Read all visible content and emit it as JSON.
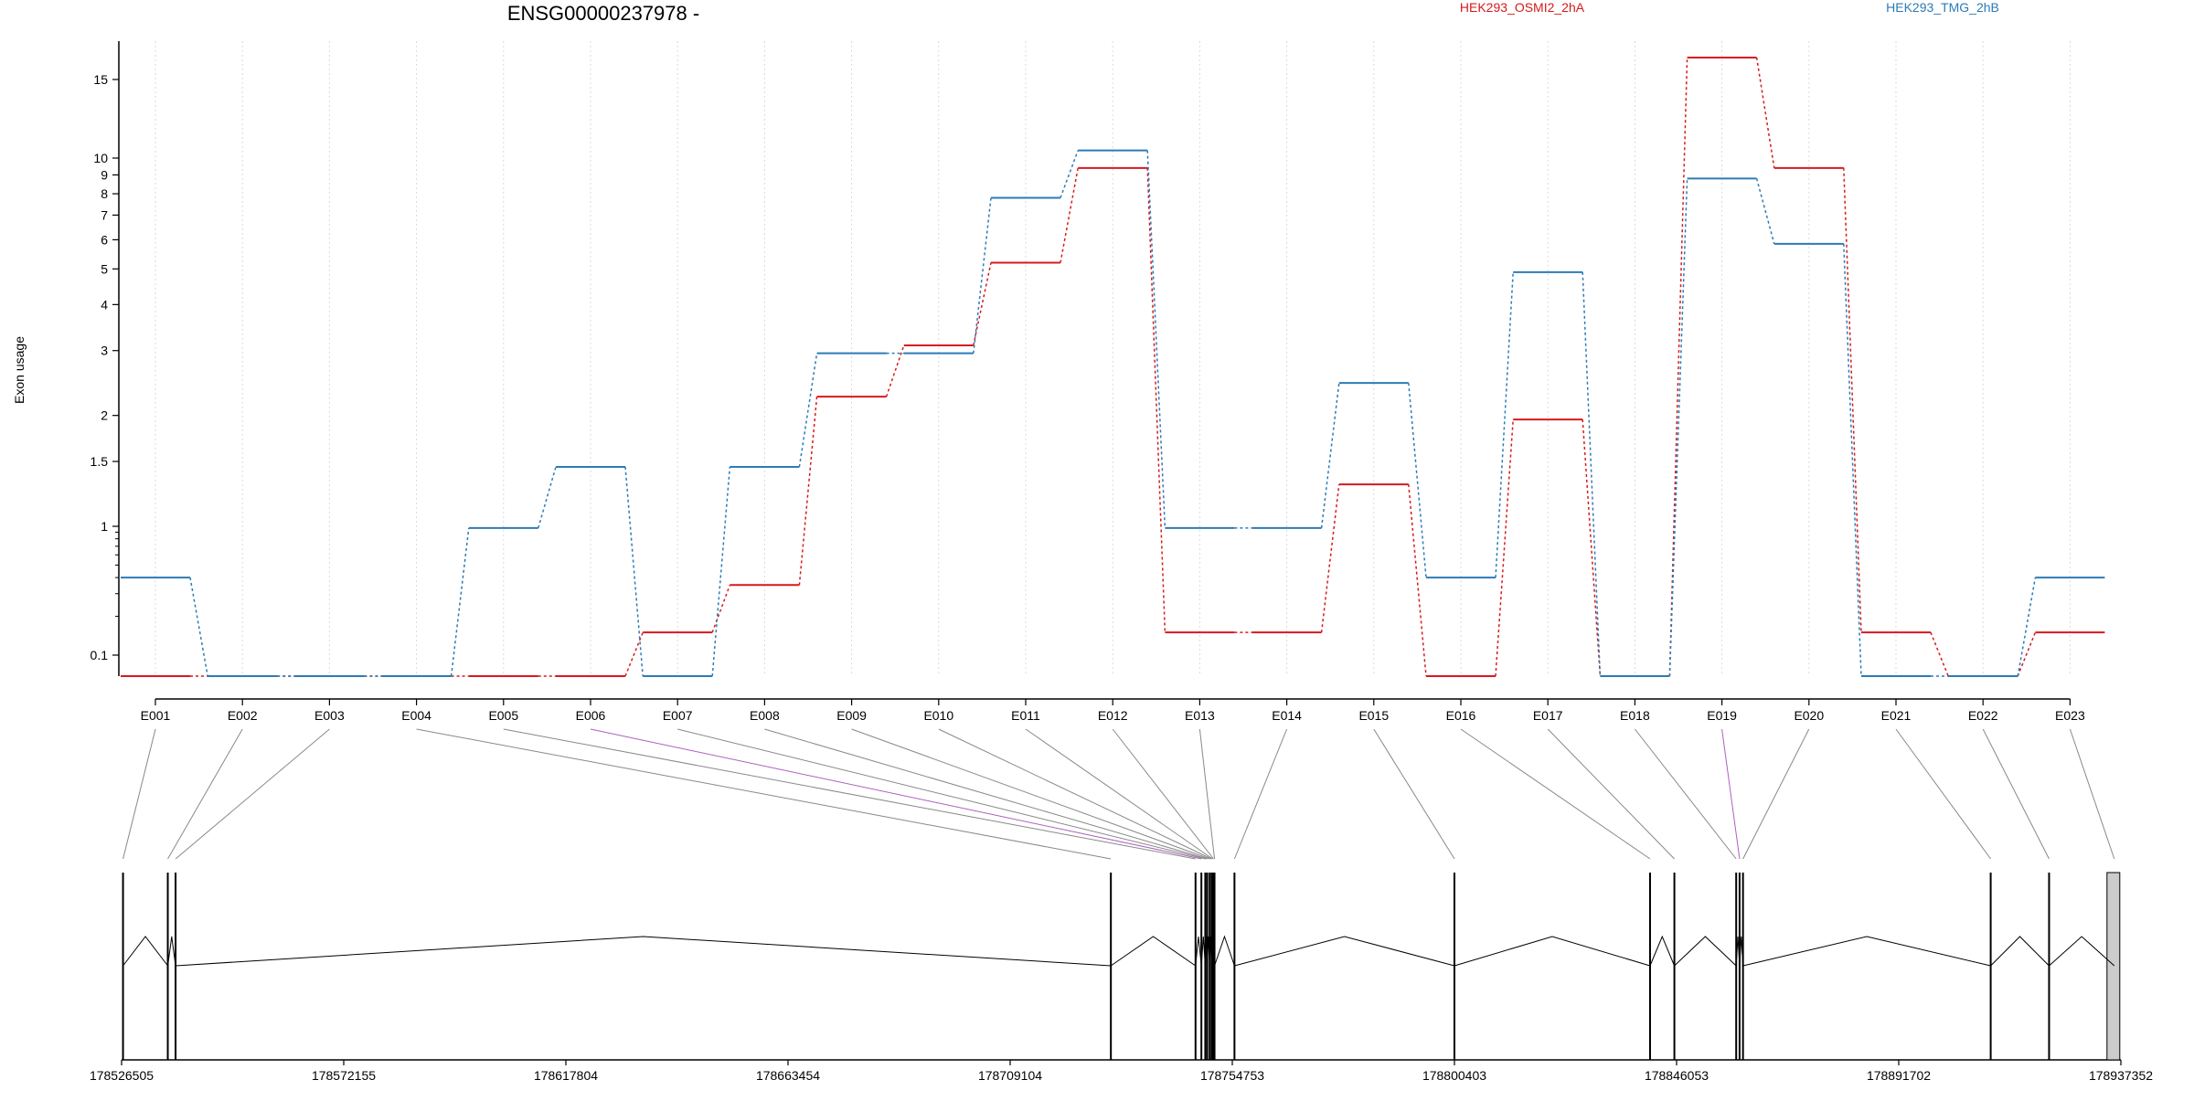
{
  "chart_data": {
    "type": "line",
    "title": "ENSG00000237978 -",
    "ylabel": "Exon usage",
    "yscale": "log",
    "y_ticks": [
      0.1,
      1,
      1.5,
      2,
      3,
      4,
      5,
      6,
      7,
      8,
      9,
      10,
      15
    ],
    "y_tick_labels": [
      "0.1",
      "1",
      "1.5",
      "2",
      "3",
      "4",
      "5",
      "6",
      "7",
      "8",
      "9",
      "10",
      "15"
    ],
    "categories": [
      "E001",
      "E002",
      "E003",
      "E004",
      "E005",
      "E006",
      "E007",
      "E008",
      "E009",
      "E010",
      "E011",
      "E012",
      "E013",
      "E014",
      "E015",
      "E016",
      "E017",
      "E018",
      "E019",
      "E020",
      "E021",
      "E022",
      "E023"
    ],
    "series": [
      {
        "name": "HEK293_OSMI2_2hA",
        "color": "#d7191c",
        "values": [
          0.07,
          0.07,
          0.07,
          0.07,
          0.07,
          0.07,
          0.15,
          0.35,
          2.25,
          3.1,
          5.2,
          9.4,
          0.15,
          0.15,
          1.3,
          0.07,
          1.95,
          0.07,
          16.8,
          9.4,
          0.15,
          0.07,
          0.15
        ]
      },
      {
        "name": "HEK293_TMG_2hB",
        "color": "#2c7bb6",
        "values": [
          0.4,
          0.07,
          0.07,
          0.07,
          0.97,
          1.45,
          0.07,
          1.45,
          2.95,
          2.95,
          7.8,
          10.4,
          0.97,
          0.97,
          2.45,
          0.4,
          4.9,
          0.07,
          8.8,
          5.85,
          0.07,
          0.07,
          0.4
        ]
      }
    ],
    "genomic_axis": {
      "ticks": [
        178526505,
        178572155,
        178617804,
        178663454,
        178709104,
        178754753,
        178800403,
        178846053,
        178891702,
        178937352
      ],
      "tick_labels": [
        "178526505",
        "178572155",
        "178617804",
        "178663454",
        "178709104",
        "178754753",
        "178800403",
        "178846053",
        "178891702",
        "178937352"
      ],
      "exon_positions": [
        178526800,
        178536000,
        178537600,
        178729800,
        178747200,
        178748400,
        178749200,
        178749600,
        178750100,
        178750500,
        178750700,
        178750900,
        178751100,
        178755200,
        178800400,
        178840600,
        178845600,
        178858300,
        178859000,
        178859700,
        178910600,
        178922600,
        178936000
      ],
      "highlighted_exons": [
        "E006",
        "E019"
      ]
    }
  }
}
